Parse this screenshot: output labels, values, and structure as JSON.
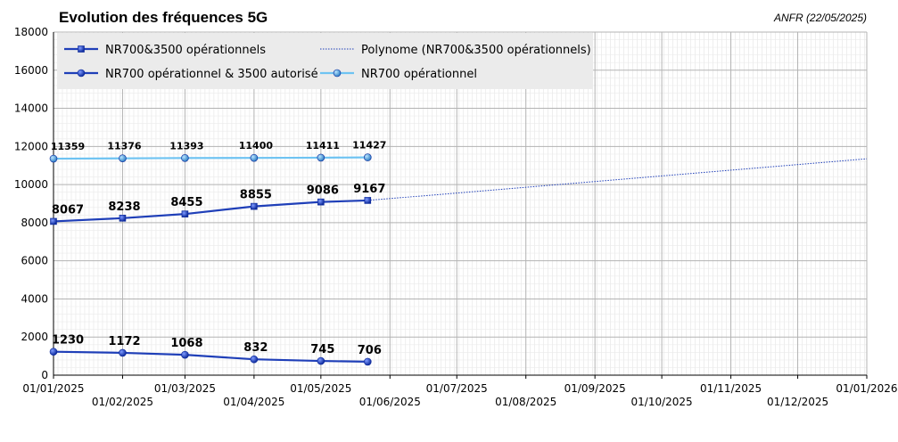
{
  "chart_data": {
    "type": "line",
    "title": "Evolution des fréquences 5G",
    "source": "ANFR (22/05/2025)",
    "xlabel": "",
    "ylabel": "",
    "ylim": [
      0,
      18000
    ],
    "yticks": [
      0,
      2000,
      4000,
      6000,
      8000,
      10000,
      12000,
      14000,
      16000,
      18000
    ],
    "xlim": [
      "2025-01-01",
      "2026-01-01"
    ],
    "xticks": [
      {
        "date": "2025-01-01",
        "label": "01/01/2025"
      },
      {
        "date": "2025-02-01",
        "label": "01/02/2025"
      },
      {
        "date": "2025-03-01",
        "label": "01/03/2025"
      },
      {
        "date": "2025-04-01",
        "label": "01/04/2025"
      },
      {
        "date": "2025-05-01",
        "label": "01/05/2025"
      },
      {
        "date": "2025-06-01",
        "label": "01/06/2025"
      },
      {
        "date": "2025-07-01",
        "label": "01/07/2025"
      },
      {
        "date": "2025-08-01",
        "label": "01/08/2025"
      },
      {
        "date": "2025-09-01",
        "label": "01/09/2025"
      },
      {
        "date": "2025-10-01",
        "label": "01/10/2025"
      },
      {
        "date": "2025-11-01",
        "label": "01/11/2025"
      },
      {
        "date": "2025-12-01",
        "label": "01/12/2025"
      },
      {
        "date": "2026-01-01",
        "label": "01/01/2026"
      }
    ],
    "grid": true,
    "legend_position": "top-left",
    "series": [
      {
        "name": "NR700&3500 opérationnels",
        "color": "#1f3fb8",
        "marker": "square",
        "x": [
          "2025-01-01",
          "2025-02-01",
          "2025-03-01",
          "2025-04-01",
          "2025-05-01",
          "2025-05-22"
        ],
        "values": [
          8067,
          8238,
          8455,
          8855,
          9086,
          9167
        ],
        "labels": [
          "8067",
          "8238",
          "8455",
          "8855",
          "9086",
          "9167"
        ]
      },
      {
        "name": "NR700 opérationnel & 3500 autorisé",
        "color": "#1f3fb8",
        "marker": "circle",
        "x": [
          "2025-01-01",
          "2025-02-01",
          "2025-03-01",
          "2025-04-01",
          "2025-05-01",
          "2025-05-22"
        ],
        "values": [
          1230,
          1172,
          1068,
          832,
          745,
          706
        ],
        "labels": [
          "1230",
          "1172",
          "1068",
          "832",
          "745",
          "706"
        ]
      },
      {
        "name": "NR700 opérationnel",
        "color": "#6ec3f2",
        "marker": "circle",
        "x": [
          "2025-01-01",
          "2025-02-01",
          "2025-03-01",
          "2025-04-01",
          "2025-05-01",
          "2025-05-22"
        ],
        "values": [
          11359,
          11376,
          11393,
          11400,
          11411,
          11427
        ],
        "labels": [
          "11359",
          "11376",
          "11393",
          "11400",
          "11411",
          "11427"
        ]
      }
    ],
    "trendline": {
      "name": "Polynome (NR700&3500 opérationnels)",
      "color": "#1f3fb8",
      "style": "dotted",
      "x": [
        "2025-05-22",
        "2026-01-01"
      ],
      "values": [
        9167,
        11350
      ]
    }
  }
}
